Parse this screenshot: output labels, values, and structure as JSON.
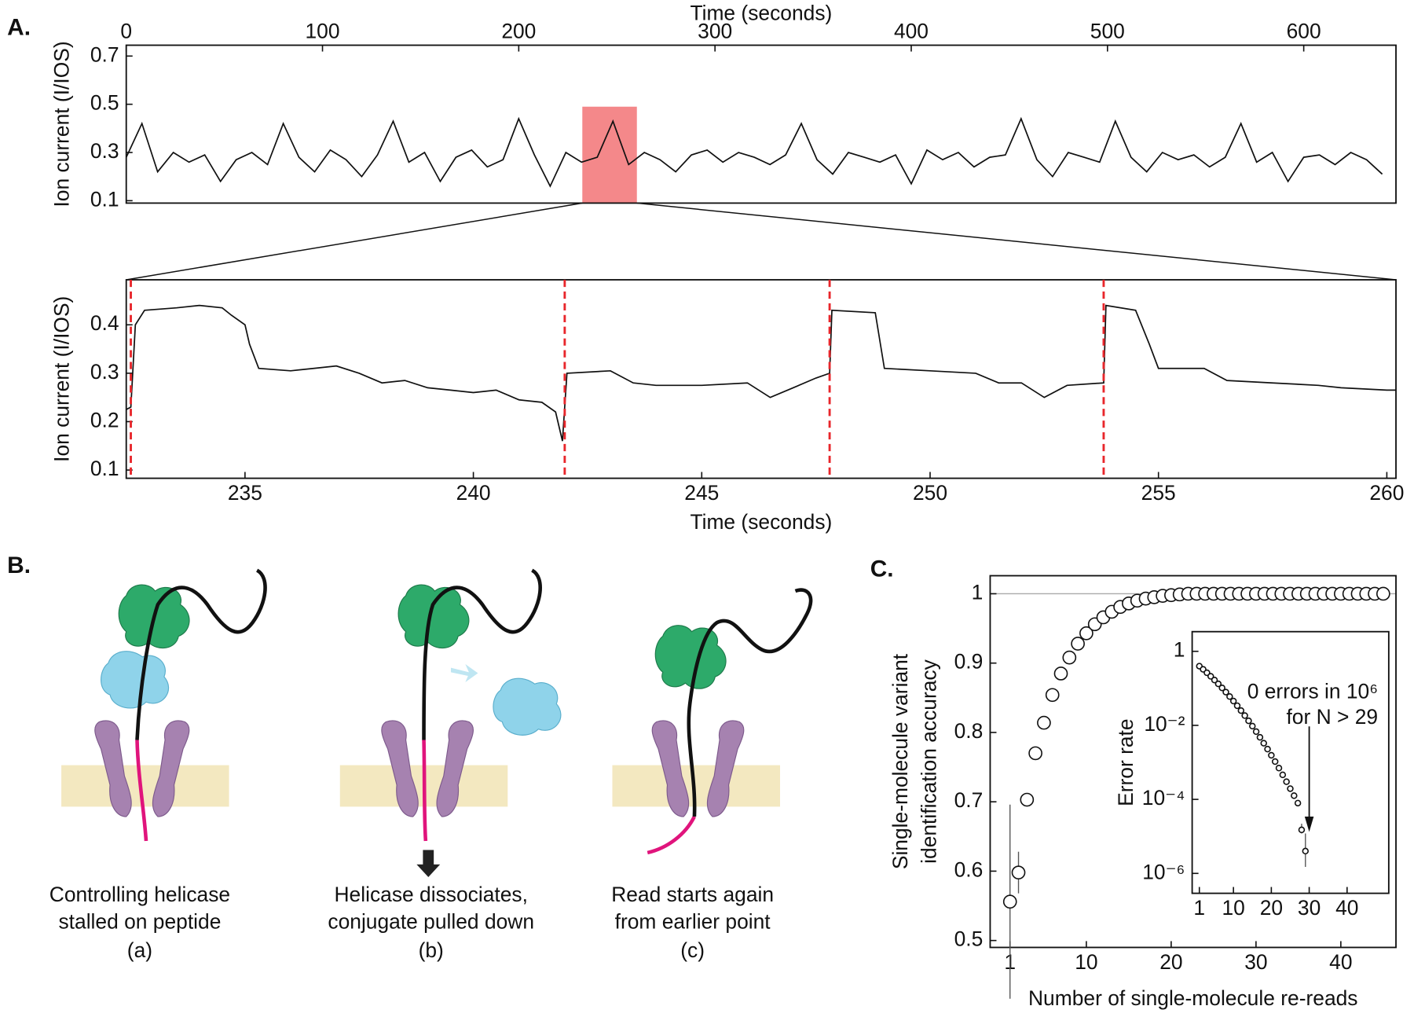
{
  "panel_labels": [
    "A.",
    "B.",
    "C."
  ],
  "diagram": {
    "captions": [
      {
        "lines": [
          "Controlling helicase",
          "stalled on peptide"
        ],
        "tag": "(a)"
      },
      {
        "lines": [
          "Helicase dissociates,",
          "conjugate pulled down"
        ],
        "tag": "(b)"
      },
      {
        "lines": [
          "Read starts again",
          "from earlier point"
        ],
        "tag": "(c)"
      }
    ]
  },
  "chart_data": [
    {
      "type": "line",
      "x_label": "Time (seconds)",
      "y_label": "Ion current (I/IOS)",
      "color": "#111111",
      "xlim": [
        0,
        647
      ],
      "ylim": [
        0.09,
        0.745
      ],
      "xticks": [
        0,
        100,
        200,
        300,
        400,
        500,
        600
      ],
      "yticks": [
        0.1,
        0.3,
        0.5,
        0.7
      ],
      "highlight": {
        "xlim": [
          232.4,
          260.2
        ],
        "top": 0.49,
        "color": "#f4888a"
      },
      "x": [
        0,
        8,
        16,
        24,
        32,
        40,
        48,
        56,
        64,
        72,
        80,
        88,
        96,
        104,
        112,
        120,
        128,
        136,
        144,
        152,
        160,
        168,
        176,
        184,
        192,
        200,
        208,
        216,
        224,
        232,
        240,
        248,
        256,
        264,
        272,
        280,
        288,
        296,
        304,
        312,
        320,
        328,
        336,
        344,
        352,
        360,
        368,
        376,
        384,
        392,
        400,
        408,
        416,
        424,
        432,
        440,
        448,
        456,
        464,
        472,
        480,
        488,
        496,
        504,
        512,
        520,
        528,
        536,
        544,
        552,
        560,
        568,
        576,
        584,
        592,
        600,
        608,
        616,
        624,
        632,
        640
      ],
      "values": [
        0.28,
        0.42,
        0.22,
        0.3,
        0.26,
        0.29,
        0.18,
        0.27,
        0.3,
        0.25,
        0.42,
        0.28,
        0.22,
        0.31,
        0.27,
        0.2,
        0.29,
        0.43,
        0.26,
        0.3,
        0.18,
        0.28,
        0.31,
        0.24,
        0.27,
        0.44,
        0.29,
        0.16,
        0.3,
        0.26,
        0.28,
        0.43,
        0.25,
        0.3,
        0.27,
        0.22,
        0.29,
        0.31,
        0.26,
        0.3,
        0.28,
        0.25,
        0.29,
        0.42,
        0.27,
        0.21,
        0.3,
        0.28,
        0.26,
        0.29,
        0.17,
        0.31,
        0.27,
        0.3,
        0.24,
        0.28,
        0.29,
        0.44,
        0.27,
        0.2,
        0.3,
        0.28,
        0.26,
        0.43,
        0.28,
        0.22,
        0.3,
        0.27,
        0.29,
        0.24,
        0.28,
        0.42,
        0.26,
        0.3,
        0.18,
        0.28,
        0.29,
        0.25,
        0.3,
        0.27,
        0.21
      ]
    },
    {
      "type": "line",
      "x_label": "Time (seconds)",
      "y_label": "Ion current (I/IOS)",
      "color": "#111111",
      "xlim": [
        232.4,
        260.2
      ],
      "ylim": [
        0.083,
        0.493
      ],
      "xticks": [
        235,
        240,
        245,
        250,
        255,
        260
      ],
      "yticks": [
        0.1,
        0.2,
        0.3,
        0.4
      ],
      "markers": [
        232.5,
        242,
        247.8,
        253.8
      ],
      "marker_color": "#e8262b",
      "x": [
        232.4,
        232.5,
        232.6,
        232.8,
        233.5,
        234,
        234.5,
        234.7,
        235,
        235.1,
        235.3,
        236,
        236.5,
        237,
        237.5,
        238,
        238.5,
        239,
        239.5,
        240,
        240.5,
        241,
        241.5,
        241.8,
        241.95,
        242.05,
        243,
        243.5,
        244,
        245,
        246,
        246.5,
        247,
        247.5,
        247.8,
        247.85,
        248.8,
        249,
        250,
        251,
        251.5,
        252,
        252.5,
        253,
        253.8,
        253.85,
        254.5,
        254.8,
        255,
        256,
        256.5,
        257.5,
        258.5,
        259,
        260,
        260.2
      ],
      "values": [
        0.225,
        0.23,
        0.4,
        0.43,
        0.435,
        0.44,
        0.435,
        0.42,
        0.4,
        0.36,
        0.31,
        0.305,
        0.31,
        0.315,
        0.3,
        0.28,
        0.285,
        0.27,
        0.265,
        0.26,
        0.265,
        0.245,
        0.24,
        0.22,
        0.16,
        0.3,
        0.305,
        0.28,
        0.275,
        0.275,
        0.28,
        0.25,
        0.27,
        0.29,
        0.3,
        0.43,
        0.425,
        0.31,
        0.305,
        0.3,
        0.28,
        0.28,
        0.25,
        0.275,
        0.28,
        0.44,
        0.43,
        0.36,
        0.31,
        0.31,
        0.285,
        0.28,
        0.275,
        0.27,
        0.265,
        0.265
      ]
    },
    {
      "type": "scatter",
      "x_label": "Number of single-molecule re-reads",
      "y_label": [
        "Single-molecule variant",
        "identification accuracy"
      ],
      "xlim": [
        -1.34,
        46.5
      ],
      "ylim": [
        0.49,
        1.026
      ],
      "xticks": [
        1,
        10,
        20,
        30,
        40
      ],
      "yticks": [
        0.5,
        0.6,
        0.7,
        0.8,
        0.9,
        1
      ],
      "hline": 1,
      "x": [
        1,
        2,
        3,
        4,
        5,
        6,
        7,
        8,
        9,
        10,
        11,
        12,
        13,
        14,
        15,
        16,
        17,
        18,
        19,
        20,
        21,
        22,
        23,
        24,
        25,
        26,
        27,
        28,
        29,
        30,
        31,
        32,
        33,
        34,
        35,
        36,
        37,
        38,
        39,
        40,
        41,
        42,
        43,
        44,
        45
      ],
      "values": [
        0.556,
        0.598,
        0.703,
        0.77,
        0.814,
        0.854,
        0.885,
        0.908,
        0.928,
        0.943,
        0.956,
        0.966,
        0.974,
        0.981,
        0.986,
        0.99,
        0.993,
        0.995,
        0.997,
        0.998,
        0.999,
        1,
        1,
        1,
        1,
        1,
        1,
        1,
        1,
        1,
        1,
        1,
        1,
        1,
        1,
        1,
        1,
        1,
        1,
        1,
        1,
        1,
        1,
        1,
        1
      ],
      "errors": [
        0.14,
        0.03,
        null,
        null,
        null,
        null,
        null,
        null,
        null,
        null,
        null,
        null,
        null,
        null,
        null,
        null,
        null,
        null,
        null,
        null,
        null,
        null,
        null,
        null,
        null,
        null,
        null,
        null,
        null,
        null,
        null,
        null,
        null,
        null,
        null,
        null,
        null,
        null,
        null,
        null,
        null,
        null,
        null,
        null,
        null
      ]
    },
    {
      "type": "scatter",
      "y_label": "Error rate",
      "ylog": true,
      "xlim": [
        -0.9,
        51
      ],
      "ylim": [
        2.9e-07,
        3.4
      ],
      "xticks": [
        1,
        10,
        20,
        30,
        40
      ],
      "yticks": [
        1,
        {
          "value": 0.01,
          "label": "10⁻²"
        },
        {
          "value": 0.0001,
          "label": "10⁻⁴"
        },
        {
          "value": 1e-06,
          "label": "10⁻⁶"
        }
      ],
      "annotation": [
        "0 errors in 10⁶",
        "for N > 29"
      ],
      "arrow_x": 30,
      "x": [
        1,
        2,
        3,
        4,
        5,
        6,
        7,
        8,
        9,
        10,
        11,
        12,
        13,
        14,
        15,
        16,
        17,
        18,
        19,
        20,
        21,
        22,
        23,
        24,
        25,
        26,
        27,
        28,
        29
      ],
      "values": [
        0.398,
        0.326,
        0.264,
        0.211,
        0.168,
        0.132,
        0.103,
        0.0789,
        0.0601,
        0.0454,
        0.0339,
        0.0251,
        0.0183,
        0.0133,
        0.00953,
        0.00676,
        0.00475,
        0.0033,
        0.00228,
        0.00155,
        0.00105,
        0.0007,
        0.00046,
        0.0003,
        0.000195,
        0.000126,
        7.94e-05,
        1.5e-05,
        4e-06
      ],
      "error_ranges": [
        null,
        null,
        null,
        null,
        null,
        null,
        null,
        null,
        null,
        null,
        null,
        null,
        null,
        null,
        null,
        null,
        null,
        null,
        null,
        null,
        null,
        null,
        null,
        null,
        null,
        null,
        null,
        [
          1.2e-05,
          2.2e-05
        ],
        [
          1.5e-06,
          1.2e-05
        ]
      ]
    }
  ]
}
